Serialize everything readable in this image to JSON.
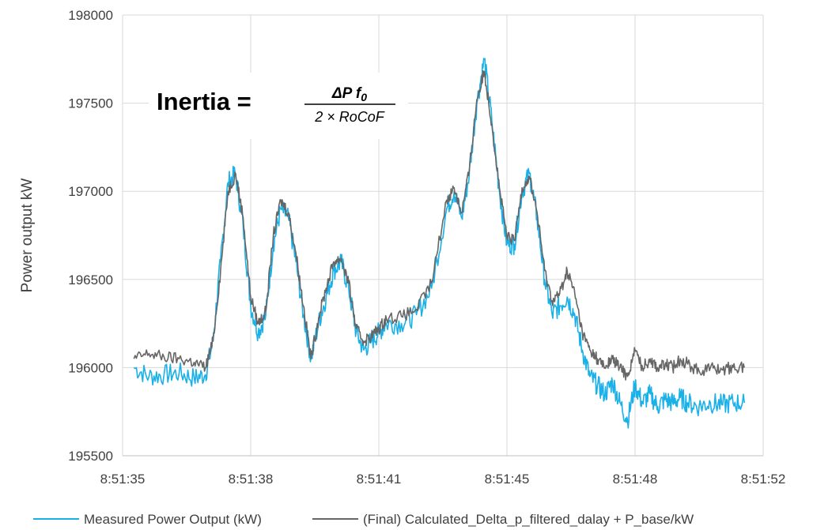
{
  "chart_data": {
    "type": "line",
    "title": "",
    "xlabel": "",
    "ylabel": "Power output kW",
    "ylim": [
      195500,
      198000
    ],
    "yticks": [
      "195500",
      "196000",
      "196500",
      "197000",
      "197500",
      "198000"
    ],
    "xlim_seconds": [
      0,
      17
    ],
    "xticks": [
      "8:51:35",
      "8:51:38",
      "8:51:41",
      "8:51:45",
      "8:51:48",
      "8:51:52"
    ],
    "grid": true,
    "legend_position": "bottom",
    "annotation": {
      "lhs": "Inertia =",
      "numerator": "ΔP f",
      "numerator_sub": "0",
      "denominator": "2 × RoCoF"
    },
    "series": [
      {
        "name": "Measured Power Output (kW)",
        "color": "#1ab0e8",
        "x_seconds": [
          0.3,
          0.7,
          1.1,
          1.5,
          1.9,
          2.2,
          2.4,
          2.6,
          2.8,
          3.0,
          3.2,
          3.4,
          3.6,
          3.8,
          4.0,
          4.2,
          4.4,
          4.6,
          4.8,
          5.0,
          5.2,
          5.4,
          5.6,
          5.8,
          6.0,
          6.2,
          6.4,
          6.6,
          6.8,
          7.0,
          7.4,
          7.8,
          8.2,
          8.6,
          8.8,
          9.0,
          9.2,
          9.4,
          9.6,
          9.8,
          10.0,
          10.2,
          10.4,
          10.6,
          10.8,
          11.0,
          11.2,
          11.4,
          11.6,
          11.8,
          12.0,
          12.2,
          12.4,
          12.6,
          12.8,
          13.0,
          13.2,
          13.4,
          13.6,
          13.8,
          14.0,
          14.2,
          14.4,
          14.6,
          14.8,
          15.0,
          15.3,
          15.6,
          15.9,
          16.2,
          16.5
        ],
        "values": [
          196000,
          195950,
          195960,
          195970,
          195940,
          195960,
          196150,
          196600,
          197050,
          197100,
          196800,
          196350,
          196200,
          196300,
          196700,
          196900,
          196850,
          196600,
          196300,
          196050,
          196250,
          196400,
          196550,
          196600,
          196450,
          196200,
          196100,
          196150,
          196200,
          196250,
          196250,
          196300,
          196450,
          196900,
          197000,
          196850,
          197100,
          197500,
          197750,
          197400,
          197000,
          196700,
          196700,
          197000,
          197100,
          196850,
          196500,
          196300,
          196350,
          196400,
          196300,
          196100,
          195950,
          195900,
          195850,
          195920,
          195800,
          195700,
          195900,
          195800,
          195850,
          195780,
          195820,
          195800,
          195830,
          195800,
          195780,
          195800,
          195790,
          195800,
          195800
        ]
      },
      {
        "name": "(Final) Calculated_Delta_p_filtered_dalay + P_base/kW",
        "color": "#666666",
        "x_seconds": [
          0.3,
          0.7,
          1.1,
          1.5,
          1.9,
          2.2,
          2.4,
          2.6,
          2.8,
          3.0,
          3.2,
          3.4,
          3.6,
          3.8,
          4.0,
          4.2,
          4.4,
          4.6,
          4.8,
          5.0,
          5.2,
          5.4,
          5.6,
          5.8,
          6.0,
          6.2,
          6.4,
          6.6,
          6.8,
          7.0,
          7.4,
          7.8,
          8.2,
          8.6,
          8.8,
          9.0,
          9.2,
          9.4,
          9.6,
          9.8,
          10.0,
          10.2,
          10.4,
          10.6,
          10.8,
          11.0,
          11.2,
          11.4,
          11.6,
          11.8,
          12.0,
          12.2,
          12.4,
          12.6,
          12.8,
          13.0,
          13.2,
          13.4,
          13.6,
          13.8,
          14.0,
          14.2,
          14.4,
          14.6,
          14.8,
          15.0,
          15.3,
          15.6,
          15.9,
          16.2,
          16.5
        ],
        "values": [
          196050,
          196080,
          196060,
          196050,
          196030,
          196000,
          196150,
          196550,
          197000,
          197100,
          196850,
          196400,
          196250,
          196320,
          196750,
          196950,
          196880,
          196650,
          196350,
          196050,
          196280,
          196450,
          196600,
          196620,
          196480,
          196220,
          196150,
          196180,
          196220,
          196280,
          196290,
          196330,
          196480,
          196950,
          197020,
          196880,
          197120,
          197520,
          197680,
          197380,
          197020,
          196740,
          196720,
          197020,
          197080,
          196880,
          196550,
          196380,
          196420,
          196550,
          196420,
          196200,
          196100,
          196050,
          196000,
          196050,
          196000,
          195950,
          196100,
          196000,
          196050,
          196000,
          196020,
          196000,
          196050,
          196020,
          195980,
          196000,
          195990,
          196000,
          196000
        ]
      }
    ]
  }
}
